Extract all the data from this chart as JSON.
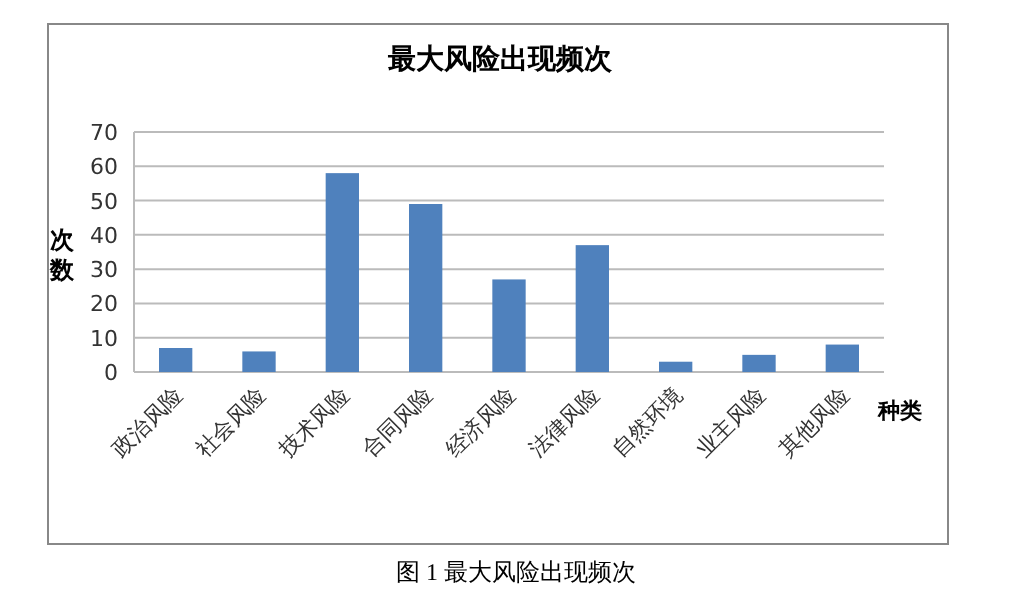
{
  "chart_data": {
    "type": "bar",
    "title": "最大风险出现频次",
    "xlabel": "种类",
    "ylabel": "次数",
    "categories": [
      "政治风险",
      "社会风险",
      "技术风险",
      "合同风险",
      "经济风险",
      "法律风险",
      "自然环境",
      "业主风险",
      "其他风险"
    ],
    "values": [
      7,
      6,
      58,
      49,
      27,
      37,
      3,
      5,
      8
    ],
    "color": "#4f81bd",
    "ylim": [
      0,
      70
    ],
    "yticks": [
      0,
      10,
      20,
      30,
      40,
      50,
      60,
      70
    ],
    "grid": "y",
    "annotations": [
      "图 1 最大风险出现频次"
    ]
  }
}
